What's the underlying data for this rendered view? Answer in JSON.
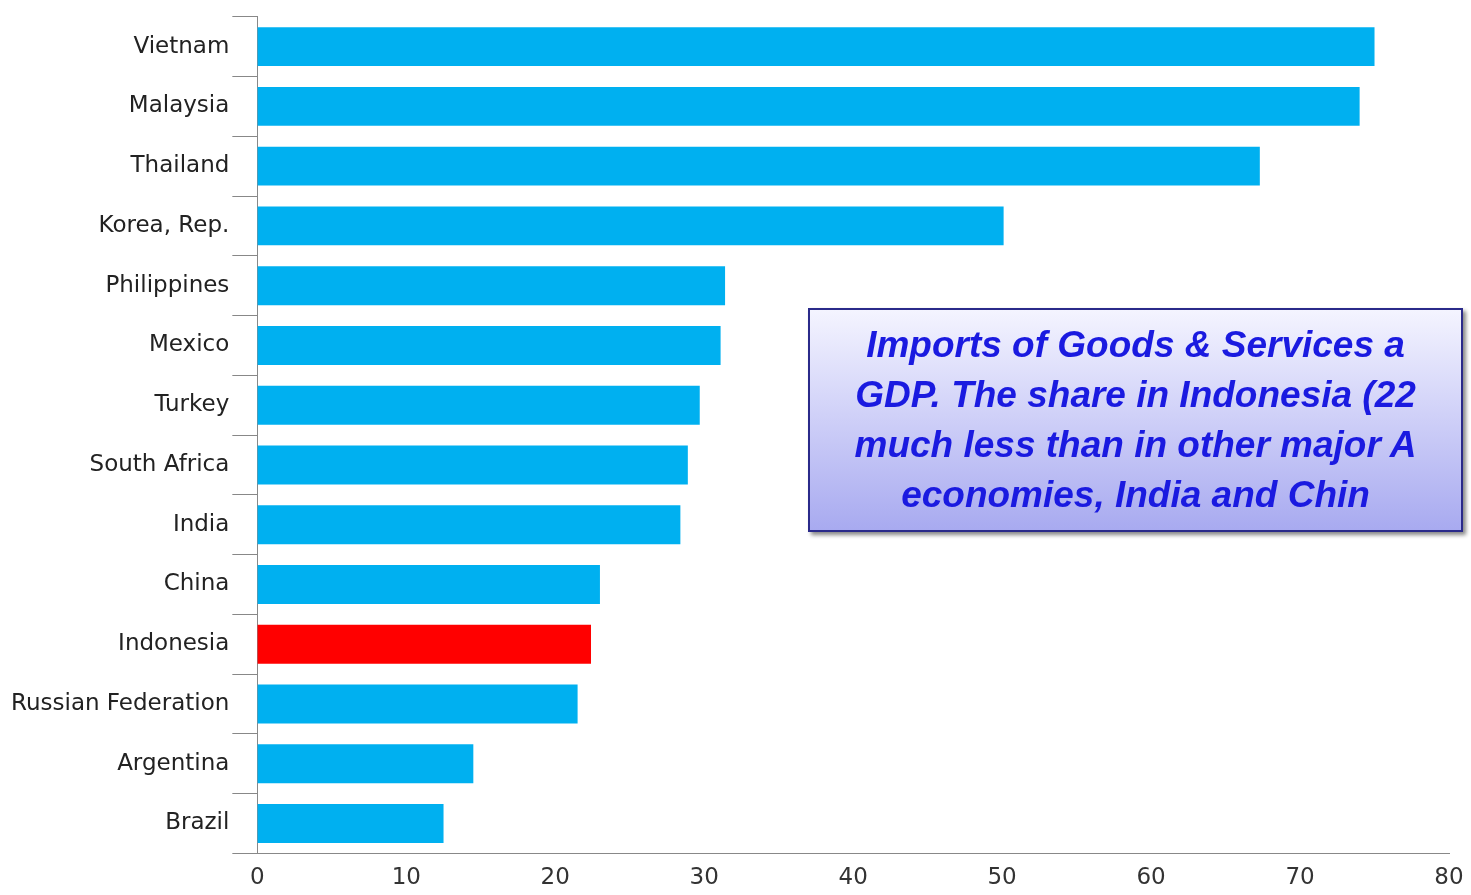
{
  "chart_data": {
    "type": "bar",
    "orientation": "horizontal",
    "categories": [
      "Vietnam",
      "Malaysia",
      "Thailand",
      "Korea, Rep.",
      "Philippines",
      "Mexico",
      "Turkey",
      "South Africa",
      "India",
      "China",
      "Indonesia",
      "Russian Federation",
      "Argentina",
      "Brazil"
    ],
    "values": [
      75,
      74,
      67.3,
      50.1,
      31.4,
      31.1,
      29.7,
      28.9,
      28.4,
      23,
      22.4,
      21.5,
      14.5,
      12.5
    ],
    "colors": [
      "#00b0f0",
      "#00b0f0",
      "#00b0f0",
      "#00b0f0",
      "#00b0f0",
      "#00b0f0",
      "#00b0f0",
      "#00b0f0",
      "#00b0f0",
      "#00b0f0",
      "#ff0000",
      "#00b0f0",
      "#00b0f0",
      "#00b0f0"
    ],
    "xlim": [
      0,
      80
    ],
    "xticks": [
      0,
      10,
      20,
      30,
      40,
      50,
      60,
      70,
      80
    ],
    "grid": false,
    "legend": false,
    "annotations": [
      "Imports of Goods & Services a\nGDP. The share in Indonesia (22\nmuch less than in other major A\neconomies, India and Chin"
    ]
  }
}
